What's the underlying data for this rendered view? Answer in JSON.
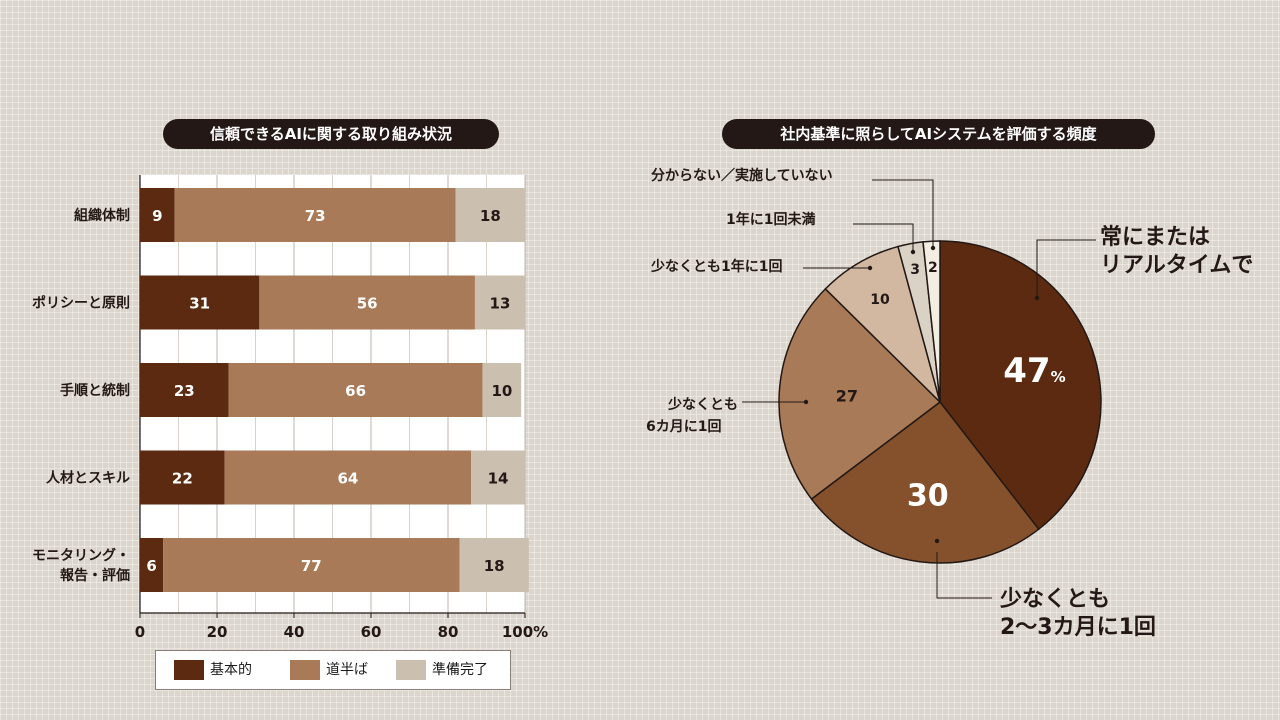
{
  "colors": {
    "basic": "#5b2a10",
    "halfway": "#a97a57",
    "ready": "#cbbfb0"
  },
  "chart_data": [
    {
      "type": "bar",
      "orientation": "horizontal-stacked",
      "title": "信頼できるAIに関する取り組み状況",
      "categories": [
        "組織体制",
        "ポリシーと原則",
        "手順と統制",
        "人材とスキル",
        "モニタリング・報告・評価"
      ],
      "category_lines": [
        [
          "組織体制"
        ],
        [
          "ポリシーと原則"
        ],
        [
          "手順と統制"
        ],
        [
          "人材とスキル"
        ],
        [
          "モニタリング・",
          "報告・評価"
        ]
      ],
      "series": [
        {
          "name": "基本的",
          "values": [
            9,
            31,
            23,
            22,
            6
          ]
        },
        {
          "name": "道半ば",
          "values": [
            73,
            56,
            66,
            64,
            77
          ]
        },
        {
          "name": "準備完了",
          "values": [
            18,
            13,
            10,
            14,
            18
          ]
        }
      ],
      "xlim": [
        0,
        100
      ],
      "xticks": [
        "0",
        "20",
        "40",
        "60",
        "80",
        "100%"
      ],
      "grid": true,
      "legend": "bottom"
    },
    {
      "type": "pie",
      "title": "社内基準に照らしてAIシステムを評価する頻度",
      "unit": "%",
      "slices": [
        {
          "label": "常にまたはリアルタイムで",
          "label_lines": [
            "常にまたは",
            "リアルタイムで"
          ],
          "value": 47,
          "value_label": "47"
        },
        {
          "label": "少なくとも2～3カ月に1回",
          "label_lines": [
            "少なくとも",
            "2～3カ月に1回"
          ],
          "value": 30,
          "value_label": "30"
        },
        {
          "label": "少なくとも6カ月に1回",
          "label_lines": [
            "少なくとも",
            "6カ月に1回"
          ],
          "value": 27,
          "value_label": "27"
        },
        {
          "label": "少なくとも1年に1回",
          "label_lines": [
            "少なくとも1年に1回"
          ],
          "value": 10,
          "value_label": "10"
        },
        {
          "label": "1年に1回未満",
          "label_lines": [
            "1年に1回未満"
          ],
          "value": 3,
          "value_label": "3"
        },
        {
          "label": "分からない／実施していない",
          "label_lines": [
            "分からない／実施していない"
          ],
          "value": 2,
          "value_label": "2"
        }
      ],
      "colors": [
        "#5b2a10",
        "#85502c",
        "#a97a57",
        "#d2b8a0",
        "#dbd2c6",
        "#f3ede2"
      ]
    }
  ]
}
